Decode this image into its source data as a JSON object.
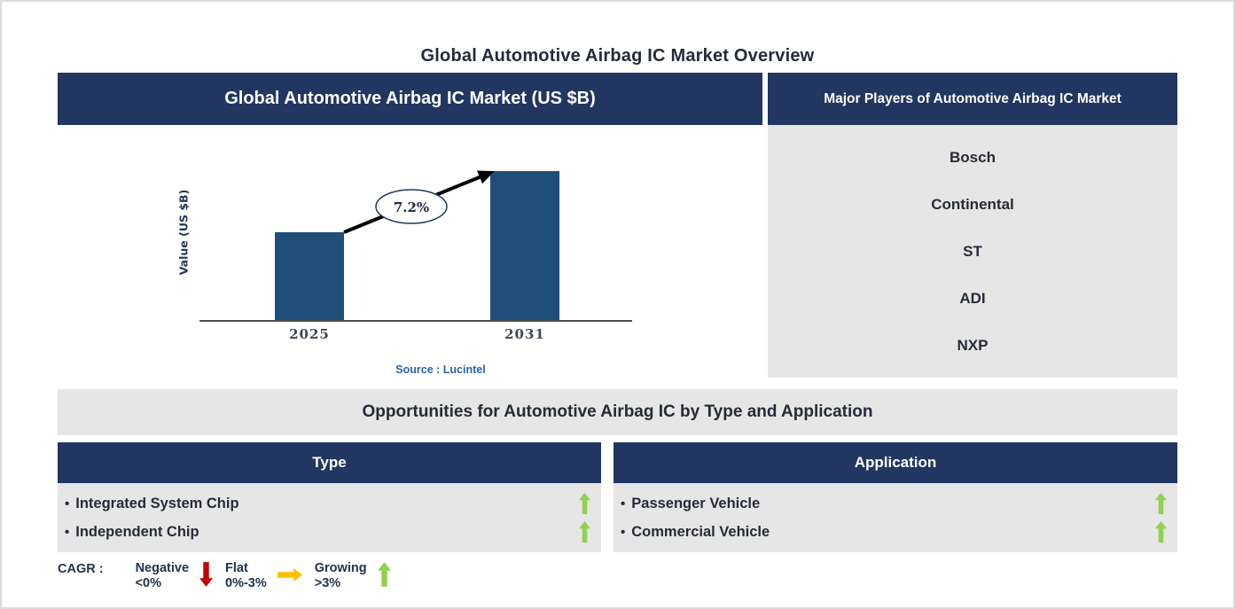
{
  "page": {
    "title": "Global Automotive Airbag IC Market Overview"
  },
  "market_chart": {
    "header": "Global Automotive Airbag IC Market (US $B)",
    "y_axis_label": "Value (US $B)",
    "source": "Source : Lucintel"
  },
  "chart_data": {
    "type": "bar",
    "title": "Global Automotive Airbag IC Market (US $B)",
    "categories": [
      "2025",
      "2031"
    ],
    "relative_heights": [
      100,
      169
    ],
    "values_labeled": false,
    "ylabel": "Value (US $B)",
    "annotation": "7.2%",
    "source": "Source : Lucintel",
    "bar_color": "#1F4E79"
  },
  "major_players": {
    "header": "Major Players of Automotive Airbag IC Market",
    "players": [
      "Bosch",
      "Continental",
      "ST",
      "ADI",
      "NXP"
    ]
  },
  "opportunities": {
    "header": "Opportunities for Automotive Airbag IC by Type and Application",
    "bullet_char": "•",
    "columns": [
      {
        "header": "Type",
        "items": [
          {
            "label": "Integrated System Chip",
            "trend": "growing"
          },
          {
            "label": "Independent Chip",
            "trend": "growing"
          }
        ]
      },
      {
        "header": "Application",
        "items": [
          {
            "label": "Passenger Vehicle",
            "trend": "growing"
          },
          {
            "label": "Commercial Vehicle",
            "trend": "growing"
          }
        ]
      }
    ]
  },
  "legend": {
    "title": "CAGR :",
    "entries": [
      {
        "label": "Negative",
        "range": "<0%",
        "direction": "down",
        "color": "#C00000"
      },
      {
        "label": "Flat",
        "range": "0%-3%",
        "direction": "right",
        "color": "#FFC000"
      },
      {
        "label": "Growing",
        "range": ">3%",
        "direction": "up",
        "color": "#92D050"
      }
    ]
  },
  "colors": {
    "navy": "#213660",
    "bar_blue": "#1F4E79",
    "panel_gray": "#E7E6E6",
    "growing_green": "#92D050",
    "negative_red": "#C00000",
    "flat_amber": "#FFC000",
    "source_blue": "#2763A8",
    "dark_text": "#242B38"
  }
}
